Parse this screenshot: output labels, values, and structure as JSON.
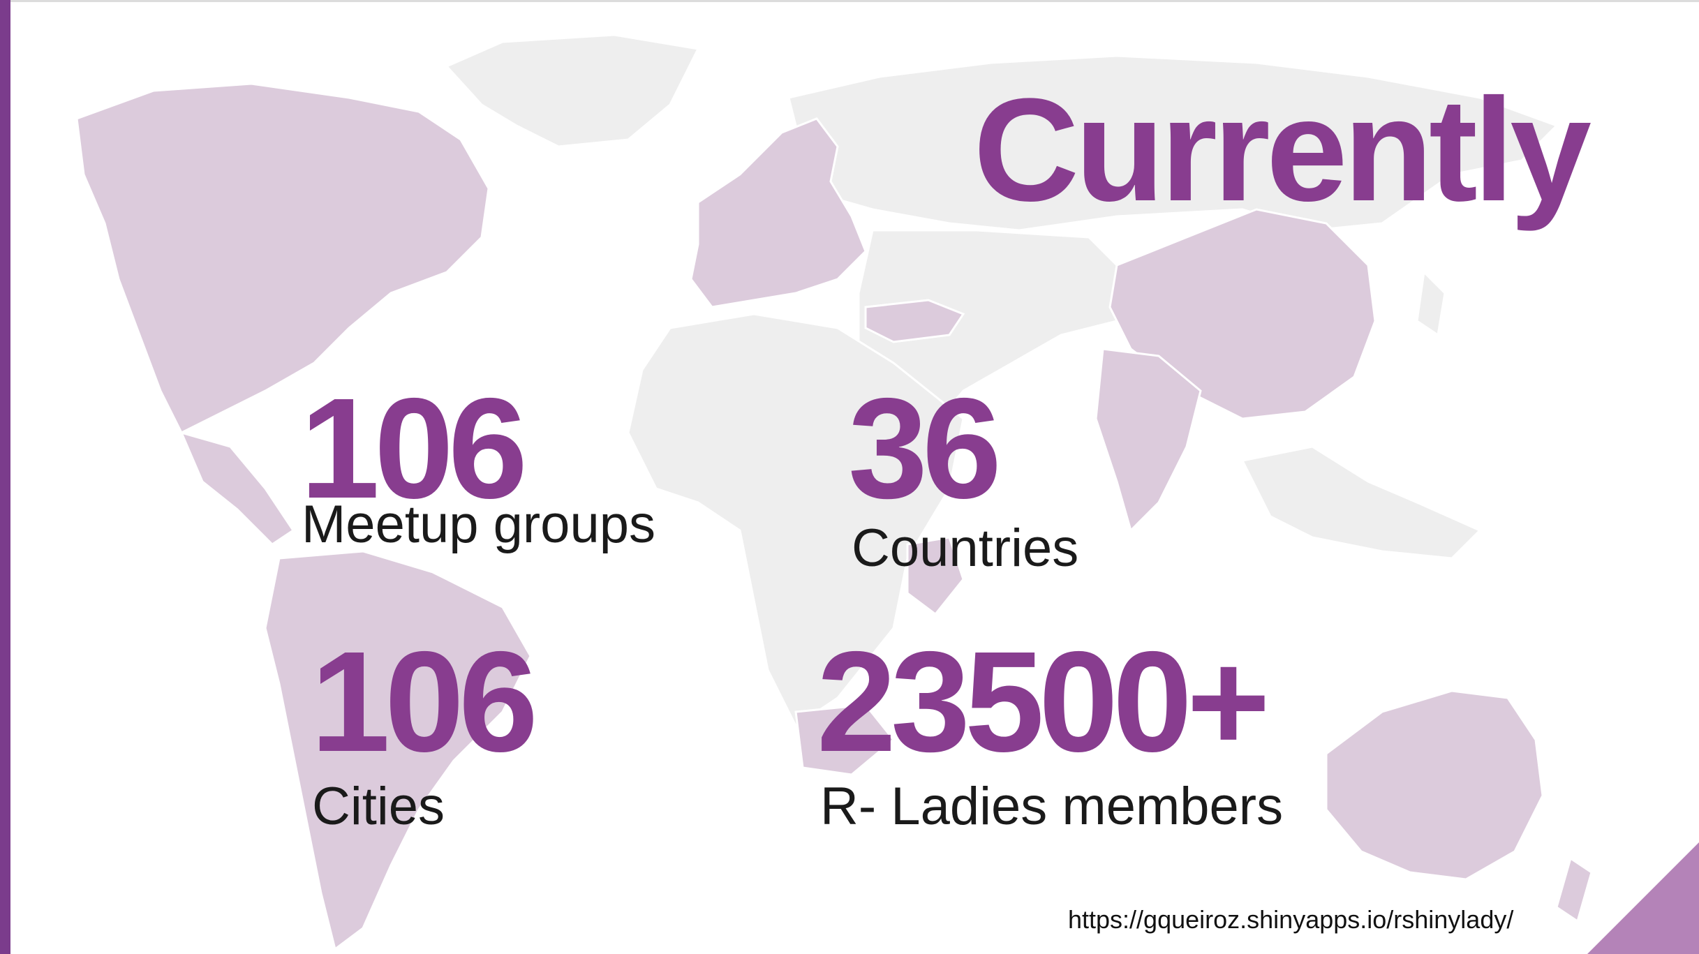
{
  "slide": {
    "title": "Currently",
    "stats": [
      {
        "value": "106",
        "label": "Meetup groups"
      },
      {
        "value": "36",
        "label": "Countries"
      },
      {
        "value": "106",
        "label": "Cities"
      },
      {
        "value": "23500+",
        "label": "R- Ladies members"
      }
    ],
    "url": "https://gqueiroz.shinyapps.io/rshinylady/"
  },
  "colors": {
    "accent": "#883d8f",
    "bar": "#7b3c8c",
    "map_highlight": "#dccbdc",
    "map_base": "#eeeeee",
    "corner": "#b483b8"
  }
}
